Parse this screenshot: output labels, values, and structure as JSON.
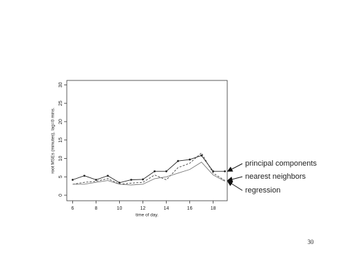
{
  "chart_data": {
    "type": "line",
    "x_label": "time of day.",
    "y_label": "root MSEs (minutes), lag=0 mins.",
    "x": [
      6,
      7,
      8,
      9,
      10,
      11,
      12,
      13,
      14,
      15,
      16,
      17,
      18,
      19
    ],
    "xlim": [
      5.5,
      19.2
    ],
    "xticks": [
      6,
      8,
      10,
      12,
      14,
      16,
      18
    ],
    "ylim": [
      -1.5,
      31.2
    ],
    "yticks": [
      0,
      5,
      10,
      15,
      20,
      25,
      30
    ],
    "series": [
      {
        "name": "principal components",
        "color": "#222222",
        "markers": true,
        "dash": false,
        "values": [
          4.2,
          5.3,
          4.2,
          5.3,
          3.4,
          4.2,
          4.3,
          6.5,
          6.5,
          9.3,
          9.7,
          10.8,
          6.5,
          6.5
        ]
      },
      {
        "name": "nearest neighbors",
        "color": "#444444",
        "markers": false,
        "dash": true,
        "values": [
          3.0,
          3.5,
          3.8,
          4.5,
          3.0,
          3.3,
          3.5,
          5.5,
          4.2,
          7.5,
          8.7,
          11.5,
          6.0,
          4.0
        ]
      },
      {
        "name": "regression",
        "color": "#777777",
        "markers": false,
        "dash": false,
        "values": [
          3.0,
          3.0,
          3.5,
          4.0,
          3.0,
          2.8,
          3.0,
          4.5,
          5.0,
          6.0,
          7.0,
          9.0,
          5.5,
          3.8
        ]
      }
    ]
  },
  "page_number": "30"
}
